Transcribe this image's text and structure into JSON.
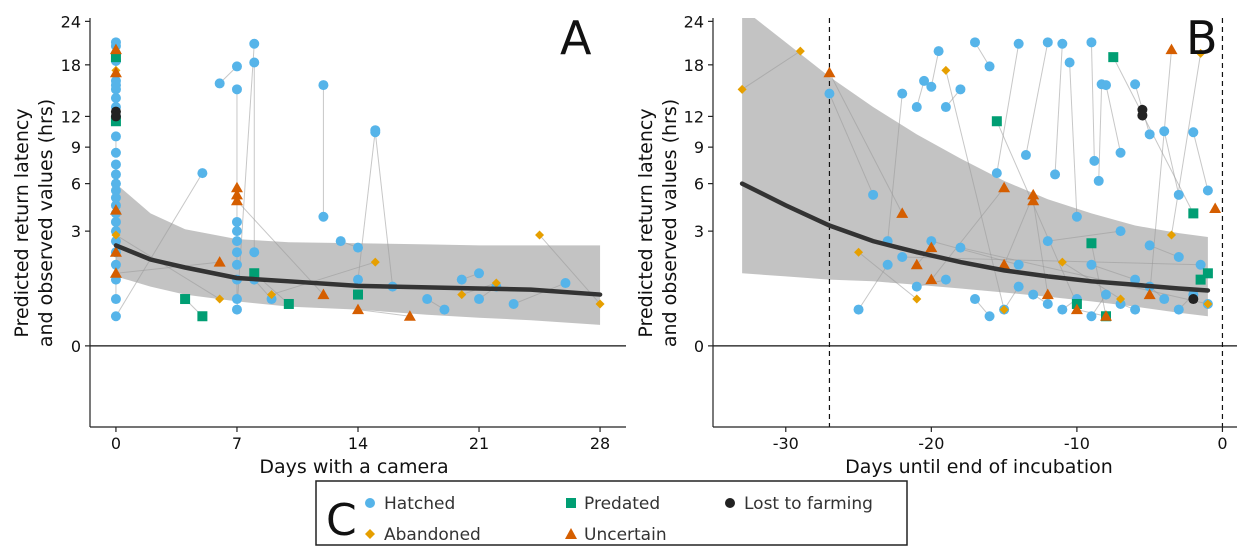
{
  "chart_data": [
    {
      "panel": "A",
      "type": "scatter",
      "xlabel": "Days with a camera",
      "ylabel_line1": "Predicted return latency",
      "ylabel_line2": "and observed values (hrs)",
      "xlim": [
        -1.5,
        29.5
      ],
      "ylim": [
        -1.5,
        24.5
      ],
      "y_scale": "sqrt",
      "x_ticks": [
        0,
        7,
        14,
        21,
        28
      ],
      "y_ticks": [
        0,
        3,
        6,
        9,
        12,
        18,
        24
      ],
      "grid": false,
      "reference_lines": [
        {
          "axis": "y",
          "value": 0,
          "style": "solid"
        }
      ],
      "fit": {
        "x": [
          0,
          2,
          4,
          7,
          10,
          14,
          18,
          21,
          24,
          28
        ],
        "y": [
          2.3,
          1.7,
          1.4,
          1.05,
          0.95,
          0.82,
          0.78,
          0.75,
          0.72,
          0.6
        ],
        "ci_lower": [
          1.1,
          0.8,
          0.6,
          0.45,
          0.35,
          0.3,
          0.22,
          0.18,
          0.15,
          0.1
        ],
        "ci_upper": [
          6.0,
          4.0,
          3.1,
          2.6,
          2.45,
          2.4,
          2.35,
          2.3,
          2.3,
          2.3
        ]
      },
      "series": [
        {
          "name": "Hatched",
          "color": "#56B4E9",
          "marker": "circle",
          "points": [
            [
              0,
              21
            ],
            [
              0,
              20.5
            ],
            [
              0,
              19.5
            ],
            [
              0,
              18.5
            ],
            [
              0,
              16
            ],
            [
              0,
              15.5
            ],
            [
              0,
              15
            ],
            [
              0,
              14
            ],
            [
              0,
              13
            ],
            [
              0,
              12
            ],
            [
              0,
              10
            ],
            [
              0,
              8.5
            ],
            [
              0,
              7.5
            ],
            [
              0,
              6.7
            ],
            [
              0,
              6
            ],
            [
              0,
              5.5
            ],
            [
              0,
              5
            ],
            [
              0,
              4.5
            ],
            [
              0,
              4
            ],
            [
              0,
              3.5
            ],
            [
              0,
              3
            ],
            [
              0,
              2.5
            ],
            [
              0,
              2
            ],
            [
              0,
              1.5
            ],
            [
              0,
              1
            ],
            [
              0,
              0.5
            ],
            [
              0,
              0.2
            ],
            [
              5,
              6.8
            ],
            [
              6,
              15.7
            ],
            [
              7,
              17.8
            ],
            [
              7,
              15
            ],
            [
              7,
              3.5
            ],
            [
              7,
              3
            ],
            [
              7,
              2.5
            ],
            [
              7,
              2
            ],
            [
              7,
              1.5
            ],
            [
              7,
              1
            ],
            [
              7,
              0.5
            ],
            [
              7,
              0.3
            ],
            [
              8,
              20.8
            ],
            [
              8,
              18.3
            ],
            [
              8,
              2
            ],
            [
              8,
              1
            ],
            [
              9,
              0.5
            ],
            [
              12,
              15.5
            ],
            [
              12,
              3.8
            ],
            [
              13,
              2.5
            ],
            [
              14,
              2.2
            ],
            [
              14,
              1
            ],
            [
              15,
              10.6
            ],
            [
              15,
              10.4
            ],
            [
              16,
              0.8
            ],
            [
              18,
              0.5
            ],
            [
              19,
              0.3
            ],
            [
              20,
              1
            ],
            [
              21,
              1.2
            ],
            [
              21,
              0.5
            ],
            [
              22,
              0.8
            ],
            [
              23,
              0.4
            ],
            [
              26,
              0.9
            ]
          ]
        },
        {
          "name": "Abandoned",
          "color": "#E69F00",
          "marker": "diamond",
          "points": [
            [
              0,
              19.8
            ],
            [
              0,
              17.3
            ],
            [
              0,
              2.8
            ],
            [
              6,
              0.5
            ],
            [
              9,
              0.6
            ],
            [
              15,
              1.6
            ],
            [
              20,
              0.6
            ],
            [
              22,
              0.9
            ],
            [
              24.5,
              2.8
            ],
            [
              28,
              0.4
            ]
          ]
        },
        {
          "name": "Predated",
          "color": "#009E73",
          "marker": "square",
          "points": [
            [
              0,
              19
            ],
            [
              0,
              11.5
            ],
            [
              4,
              0.5
            ],
            [
              5,
              0.2
            ],
            [
              8,
              1.2
            ],
            [
              10,
              0.4
            ],
            [
              14,
              0.6
            ]
          ]
        },
        {
          "name": "Uncertain",
          "color": "#D55E00",
          "marker": "triangle",
          "points": [
            [
              0,
              20
            ],
            [
              0,
              17
            ],
            [
              0,
              4.2
            ],
            [
              0,
              2
            ],
            [
              0,
              1.2
            ],
            [
              6,
              1.6
            ],
            [
              7,
              5.7
            ],
            [
              7,
              5.2
            ],
            [
              7,
              4.8
            ],
            [
              12,
              0.6
            ],
            [
              14,
              0.3
            ],
            [
              17,
              0.2
            ]
          ]
        },
        {
          "name": "Lost to farming",
          "color": "#222222",
          "marker": "circle",
          "points": [
            [
              0,
              12.5
            ],
            [
              0,
              12
            ]
          ]
        }
      ]
    },
    {
      "panel": "B",
      "type": "scatter",
      "xlabel": "Days until end of incubation",
      "ylabel_line1": "Predicted return latency",
      "ylabel_line2": "and observed values (hrs)",
      "xlim": [
        -35,
        1
      ],
      "ylim": [
        -1.5,
        24.5
      ],
      "y_scale": "sqrt",
      "x_ticks": [
        -30,
        -20,
        -10,
        0
      ],
      "y_ticks": [
        0,
        3,
        6,
        9,
        12,
        18,
        24
      ],
      "grid": false,
      "reference_lines": [
        {
          "axis": "x",
          "value": -27,
          "style": "dashed"
        },
        {
          "axis": "x",
          "value": 0,
          "style": "dashed"
        },
        {
          "axis": "y",
          "value": 0,
          "style": "solid"
        }
      ],
      "fit": {
        "x": [
          -33,
          -30,
          -27,
          -24,
          -21,
          -18,
          -15,
          -12,
          -9,
          -6,
          -3,
          -1
        ],
        "y": [
          6.0,
          4.5,
          3.3,
          2.5,
          2.0,
          1.6,
          1.3,
          1.1,
          0.95,
          0.85,
          0.75,
          0.7
        ],
        "ci_lower": [
          1.2,
          1.1,
          1.0,
          0.95,
          0.85,
          0.75,
          0.65,
          0.55,
          0.45,
          0.35,
          0.25,
          0.2
        ],
        "ci_upper": [
          26,
          21,
          16.5,
          13,
          10.2,
          8,
          6.2,
          4.9,
          4.0,
          3.3,
          2.9,
          2.7
        ]
      },
      "series": [
        {
          "name": "Hatched",
          "color": "#56B4E9",
          "marker": "circle",
          "points": [
            [
              -27,
              14.5
            ],
            [
              -24,
              5.2
            ],
            [
              -23,
              2.5
            ],
            [
              -22,
              14.5
            ],
            [
              -21,
              13
            ],
            [
              -20.5,
              16
            ],
            [
              -20,
              15.3
            ],
            [
              -19.5,
              19.8
            ],
            [
              -19,
              13
            ],
            [
              -18,
              15
            ],
            [
              -17,
              21
            ],
            [
              -16,
              17.8
            ],
            [
              -15.5,
              6.8
            ],
            [
              -14,
              20.8
            ],
            [
              -13.5,
              8.3
            ],
            [
              -12,
              21
            ],
            [
              -11.5,
              6.7
            ],
            [
              -11,
              20.8
            ],
            [
              -10.5,
              18.3
            ],
            [
              -10,
              3.8
            ],
            [
              -9,
              21
            ],
            [
              -8.8,
              7.8
            ],
            [
              -8.5,
              6.2
            ],
            [
              -8.3,
              15.6
            ],
            [
              -8,
              15.5
            ],
            [
              -7,
              8.5
            ],
            [
              -6,
              15.6
            ],
            [
              -5,
              10.2
            ],
            [
              -4,
              10.5
            ],
            [
              -3,
              5.2
            ],
            [
              -2,
              10.4
            ],
            [
              -1,
              5.5
            ],
            [
              -25,
              0.3
            ],
            [
              -23,
              1.5
            ],
            [
              -21,
              0.8
            ],
            [
              -19,
              1
            ],
            [
              -17,
              0.5
            ],
            [
              -16,
              0.2
            ],
            [
              -15,
              0.3
            ],
            [
              -14,
              0.8
            ],
            [
              -13,
              0.6
            ],
            [
              -12,
              0.4
            ],
            [
              -11,
              0.3
            ],
            [
              -10,
              0.5
            ],
            [
              -9,
              0.2
            ],
            [
              -8,
              0.6
            ],
            [
              -7,
              0.4
            ],
            [
              -6,
              0.3
            ],
            [
              -5,
              0.8
            ],
            [
              -4,
              0.5
            ],
            [
              -3,
              0.3
            ],
            [
              -2,
              0.6
            ],
            [
              -1,
              0.4
            ],
            [
              -18,
              2.2
            ],
            [
              -12,
              2.5
            ],
            [
              -7,
              3
            ],
            [
              -5,
              2.3
            ],
            [
              -3,
              1.8
            ],
            [
              -1.5,
              1.5
            ],
            [
              -22,
              1.8
            ],
            [
              -20,
              2.5
            ],
            [
              -14,
              1.5
            ],
            [
              -9,
              1.5
            ],
            [
              -6,
              1
            ]
          ]
        },
        {
          "name": "Abandoned",
          "color": "#E69F00",
          "marker": "diamond",
          "points": [
            [
              -33,
              15
            ],
            [
              -29,
              19.8
            ],
            [
              -25,
              2
            ],
            [
              -21,
              0.5
            ],
            [
              -19,
              17.3
            ],
            [
              -15,
              0.3
            ],
            [
              -11,
              1.6
            ],
            [
              -7,
              0.5
            ],
            [
              -3.5,
              2.8
            ],
            [
              -1.5,
              19.5
            ],
            [
              -1,
              0.4
            ]
          ]
        },
        {
          "name": "Predated",
          "color": "#009E73",
          "marker": "square",
          "points": [
            [
              -15.5,
              11.5
            ],
            [
              -10,
              0.4
            ],
            [
              -9,
              2.4
            ],
            [
              -8,
              0.2
            ],
            [
              -7.5,
              19
            ],
            [
              -2,
              4
            ],
            [
              -1.5,
              1
            ],
            [
              -1,
              1.2
            ]
          ]
        },
        {
          "name": "Uncertain",
          "color": "#D55E00",
          "marker": "triangle",
          "points": [
            [
              -27,
              17
            ],
            [
              -22,
              4
            ],
            [
              -21,
              1.5
            ],
            [
              -20,
              2.2
            ],
            [
              -20,
              1
            ],
            [
              -15,
              5.7
            ],
            [
              -15,
              1.5
            ],
            [
              -13,
              5.2
            ],
            [
              -13,
              4.8
            ],
            [
              -12,
              0.6
            ],
            [
              -10,
              0.3
            ],
            [
              -8,
              0.2
            ],
            [
              -5,
              0.6
            ],
            [
              -3.5,
              20
            ],
            [
              -0.5,
              4.3
            ]
          ]
        },
        {
          "name": "Lost to farming",
          "color": "#222222",
          "marker": "circle",
          "points": [
            [
              -5.5,
              12.7
            ],
            [
              -5.5,
              12.1
            ],
            [
              -2,
              0.5
            ]
          ]
        }
      ]
    }
  ],
  "panels": {
    "a": {
      "letter": "A",
      "xlabel": "Days with a camera",
      "ylabel_line1": "Predicted return latency",
      "ylabel_line2": "and observed values (hrs)",
      "x_tick_labels": [
        "0",
        "7",
        "14",
        "21",
        "28"
      ],
      "y_tick_labels": [
        "0",
        "3",
        "6",
        "9",
        "12",
        "18",
        "24"
      ]
    },
    "b": {
      "letter": "B",
      "xlabel": "Days until end of incubation",
      "ylabel_line1": "Predicted return latency",
      "ylabel_line2": "and observed values (hrs)",
      "x_tick_labels": [
        "-30",
        "-20",
        "-10",
        "0"
      ],
      "y_tick_labels": [
        "0",
        "3",
        "6",
        "9",
        "12",
        "18",
        "24"
      ]
    }
  },
  "legend": {
    "letter": "C",
    "items": [
      {
        "label": "Hatched",
        "marker": "circle",
        "color": "#56B4E9"
      },
      {
        "label": "Predated",
        "marker": "square",
        "color": "#009E73"
      },
      {
        "label": "Lost to farming",
        "marker": "circle",
        "color": "#222222"
      },
      {
        "label": "Abandoned",
        "marker": "diamond",
        "color": "#E69F00"
      },
      {
        "label": "Uncertain",
        "marker": "triangle",
        "color": "#D55E00"
      }
    ]
  },
  "colors": {
    "ci_band": "#bdbdbd",
    "fit_line": "#333333",
    "trajectory_lines": "#9a9a9a",
    "axes": "#222222"
  }
}
